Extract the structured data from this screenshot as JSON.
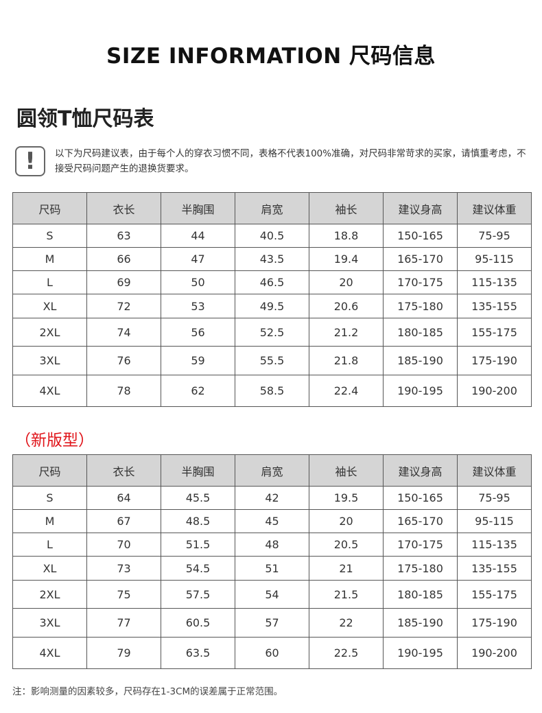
{
  "header": {
    "title": "SIZE INFORMATION  尺码信息",
    "subtitle": "圆领T恤尺码表"
  },
  "notice": {
    "icon": "exclamation-icon",
    "text": "以下为尺码建议表，由于每个人的穿衣习惯不同，表格不代表100%准确，对尺码非常苛求的买家，请慎重考虑，不接受尺码问题产生的退换货要求。"
  },
  "columns": [
    "尺码",
    "衣长",
    "半胸围",
    "肩宽",
    "袖长",
    "建议身高",
    "建议体重"
  ],
  "table1": {
    "rows": [
      [
        "S",
        "63",
        "44",
        "40.5",
        "18.8",
        "150-165",
        "75-95"
      ],
      [
        "M",
        "66",
        "47",
        "43.5",
        "19.4",
        "165-170",
        "95-115"
      ],
      [
        "L",
        "69",
        "50",
        "46.5",
        "20",
        "170-175",
        "115-135"
      ],
      [
        "XL",
        "72",
        "53",
        "49.5",
        "20.6",
        "175-180",
        "135-155"
      ],
      [
        "2XL",
        "74",
        "56",
        "52.5",
        "21.2",
        "180-185",
        "155-175"
      ],
      [
        "3XL",
        "76",
        "59",
        "55.5",
        "21.8",
        "185-190",
        "175-190"
      ],
      [
        "4XL",
        "78",
        "62",
        "58.5",
        "22.4",
        "190-195",
        "190-200"
      ]
    ]
  },
  "table2": {
    "label": "（新版型）",
    "label_color": "#e0141a",
    "rows": [
      [
        "S",
        "64",
        "45.5",
        "42",
        "19.5",
        "150-165",
        "75-95"
      ],
      [
        "M",
        "67",
        "48.5",
        "45",
        "20",
        "165-170",
        "95-115"
      ],
      [
        "L",
        "70",
        "51.5",
        "48",
        "20.5",
        "170-175",
        "115-135"
      ],
      [
        "XL",
        "73",
        "54.5",
        "51",
        "21",
        "175-180",
        "135-155"
      ],
      [
        "2XL",
        "75",
        "57.5",
        "54",
        "21.5",
        "180-185",
        "155-175"
      ],
      [
        "3XL",
        "77",
        "60.5",
        "57",
        "22",
        "185-190",
        "175-190"
      ],
      [
        "4XL",
        "79",
        "63.5",
        "60",
        "22.5",
        "190-195",
        "190-200"
      ]
    ]
  },
  "footnote": "注：影响测量的因素较多，尺码存在1-3CM的误差属于正常范围。"
}
